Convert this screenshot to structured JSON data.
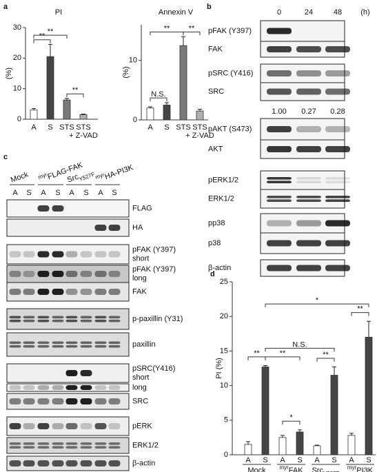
{
  "panel_labels": [
    "a",
    "b",
    "c",
    "d"
  ],
  "chart_data": [
    {
      "type": "bar",
      "title": "PI",
      "y_label": "(%)",
      "categories": [
        [
          "A"
        ],
        [
          "S"
        ],
        [
          "STS"
        ],
        [
          "STS",
          "+ Z-VAD"
        ]
      ],
      "values": [
        3,
        20.5,
        6.3,
        1.5
      ],
      "errors": [
        0.5,
        4,
        0.5,
        0.2
      ],
      "colors": [
        "#ffffff",
        "#454545",
        "#7a7a7a",
        "#b0b0b0"
      ],
      "ylim": [
        0,
        30
      ],
      "yticks": [
        0,
        10,
        20,
        30
      ],
      "annotations": [
        {
          "text": "**",
          "from": 0,
          "to": 1
        },
        {
          "text": "**",
          "from": 0,
          "to": 2
        },
        {
          "text": "**",
          "from": 2,
          "to": 3
        }
      ]
    },
    {
      "type": "bar",
      "title": "Annexin V",
      "y_label": "(%)",
      "categories": [
        [
          "A"
        ],
        [
          "S"
        ],
        [
          "STS"
        ],
        [
          "STS",
          "+ Z-VAD"
        ]
      ],
      "values": [
        2,
        2.5,
        12.5,
        1.5
      ],
      "errors": [
        0.2,
        0.4,
        1.5,
        0.3
      ],
      "colors": [
        "#ffffff",
        "#454545",
        "#7a7a7a",
        "#b0b0b0"
      ],
      "ylim": [
        0,
        16
      ],
      "yticks": [
        0,
        10
      ],
      "annotations": [
        {
          "text": "N.S.",
          "from": 0,
          "to": 1
        },
        {
          "text": "**",
          "from": 0,
          "to": 2
        },
        {
          "text": "**",
          "from": 2,
          "to": 3
        }
      ]
    },
    {
      "type": "grouped_bar",
      "y_label": "PI (%)",
      "categories": [
        "A",
        "S",
        "A",
        "S",
        "A",
        "S",
        "A",
        "S"
      ],
      "values": [
        1.5,
        12.7,
        2.5,
        3.3,
        1.3,
        11.5,
        2.8,
        17
      ],
      "errors": [
        0.4,
        0.2,
        0.3,
        0.3,
        0.1,
        1.2,
        0.3,
        2.3
      ],
      "colors": [
        "#ffffff",
        "#454545",
        "#ffffff",
        "#454545",
        "#ffffff",
        "#454545",
        "#ffffff",
        "#454545"
      ],
      "groups": [
        [
          {
            "text": "Mock"
          }
        ],
        [
          {
            "text": "myr",
            "style": "sup"
          },
          {
            "text": "FAK"
          }
        ],
        [
          {
            "text": "Src"
          },
          {
            "text": "Y527F",
            "style": "sub"
          }
        ],
        [
          {
            "text": "myr",
            "style": "sup"
          },
          {
            "text": "PI3K"
          }
        ]
      ],
      "ylim": [
        0,
        25
      ],
      "yticks": [
        0,
        5,
        10,
        15,
        20,
        25
      ],
      "annotations": [
        {
          "text": "**",
          "from": 0,
          "to": 1
        },
        {
          "text": "**",
          "from": 1,
          "to": 3
        },
        {
          "text": "*",
          "from": 2,
          "to": 3
        },
        {
          "text": "**",
          "from": 4,
          "to": 5
        },
        {
          "text": "**",
          "from": 6,
          "to": 7
        },
        {
          "text": "N.S.",
          "from": 1,
          "to": 5
        },
        {
          "text": "*",
          "from": 1,
          "to": 7
        }
      ]
    }
  ],
  "blot_b": {
    "lanes": [
      "0",
      "24",
      "48"
    ],
    "unit": "(h)",
    "quantification": [
      "1.00",
      "0.27",
      "0.28"
    ],
    "rows": [
      {
        "label": [
          "pFAK (Y397)"
        ]
      },
      {
        "label": [
          "FAK"
        ]
      },
      {
        "label": [
          "pSRC (Y416)"
        ]
      },
      {
        "label": [
          "SRC"
        ]
      },
      {
        "label": [
          "pAKT (S473)"
        ]
      },
      {
        "label": [
          "AKT"
        ]
      },
      {
        "label": [
          "pERK1/2"
        ]
      },
      {
        "label": [
          "ERK1/2"
        ]
      },
      {
        "label": [
          "pp38"
        ]
      },
      {
        "label": [
          "p38"
        ]
      },
      {
        "label": [
          "β-actin"
        ]
      }
    ]
  },
  "blot_c": {
    "groups": [
      [
        {
          "text": "Mock"
        }
      ],
      [
        {
          "text": "myr",
          "style": "sup"
        },
        {
          "text": "FLAG-FAK"
        }
      ],
      [
        {
          "text": "Src"
        },
        {
          "text": "Y527F",
          "style": "sub"
        }
      ],
      [
        {
          "text": "myr",
          "style": "sup"
        },
        {
          "text": "HA-PI3K"
        }
      ]
    ],
    "lanes": [
      "A",
      "S",
      "A",
      "S",
      "A",
      "S",
      "A",
      "S"
    ],
    "rows": [
      {
        "label": [
          "FLAG"
        ]
      },
      {
        "label": [
          "HA"
        ]
      },
      {
        "label": [
          "pFAK (Y397)",
          "short"
        ]
      },
      {
        "label": [
          "pFAK (Y397)",
          "long"
        ]
      },
      {
        "label": [
          "FAK"
        ]
      },
      {
        "label": [
          "p-paxillin (Y31)"
        ]
      },
      {
        "label": [
          "paxillin"
        ]
      },
      {
        "label": [
          "pSRC(Y416)",
          "short"
        ]
      },
      {
        "label": [
          "long"
        ]
      },
      {
        "label": [
          "SRC"
        ]
      },
      {
        "label": [
          "pERK"
        ]
      },
      {
        "label": [
          "ERK1/2"
        ]
      },
      {
        "label": [
          "β-actin"
        ]
      }
    ]
  }
}
